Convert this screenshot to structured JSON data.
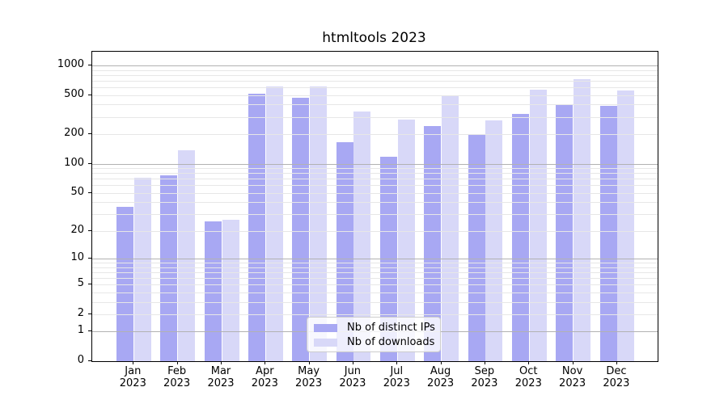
{
  "title": "htmltools 2023",
  "legend": {
    "items": [
      {
        "label": "Nb of distinct IPs",
        "color": "#a8a8f3"
      },
      {
        "label": "Nb of downloads",
        "color": "#d8d8f8"
      }
    ]
  },
  "colors": {
    "bar_distinct_ips": "#a8a8f3",
    "bar_downloads": "#d8d8f8",
    "major_grid": "#b2b2b2",
    "minor_grid": "#e7e7e7",
    "spine": "#000000"
  },
  "chart_data": {
    "type": "bar",
    "title": "htmltools 2023",
    "months": [
      "Jan",
      "Feb",
      "Mar",
      "Apr",
      "May",
      "Jun",
      "Jul",
      "Aug",
      "Sep",
      "Oct",
      "Nov",
      "Dec"
    ],
    "year": "2023",
    "series": [
      {
        "name": "Nb of distinct IPs",
        "color": "#a8a8f3",
        "values": [
          36,
          76,
          25,
          520,
          470,
          166,
          118,
          240,
          195,
          320,
          400,
          390
        ]
      },
      {
        "name": "Nb of downloads",
        "color": "#d8d8f8",
        "values": [
          71,
          137,
          26,
          615,
          615,
          340,
          280,
          485,
          275,
          570,
          720,
          560
        ]
      }
    ],
    "xlabel": "",
    "ylabel": "",
    "y_scale": "log1p",
    "y_ticks": [
      0,
      1,
      2,
      5,
      10,
      20,
      50,
      100,
      200,
      500,
      1000
    ],
    "y_major_gridlines": [
      1,
      10,
      100,
      1000
    ],
    "y_minor_gridlines": [
      2,
      3,
      4,
      5,
      6,
      7,
      8,
      9,
      20,
      30,
      40,
      50,
      60,
      70,
      80,
      90,
      200,
      300,
      400,
      500,
      600,
      700,
      800,
      900
    ],
    "ylim": [
      0,
      1380
    ],
    "grid": "on, drawn above bars",
    "legend_position": "inside lower-center"
  }
}
